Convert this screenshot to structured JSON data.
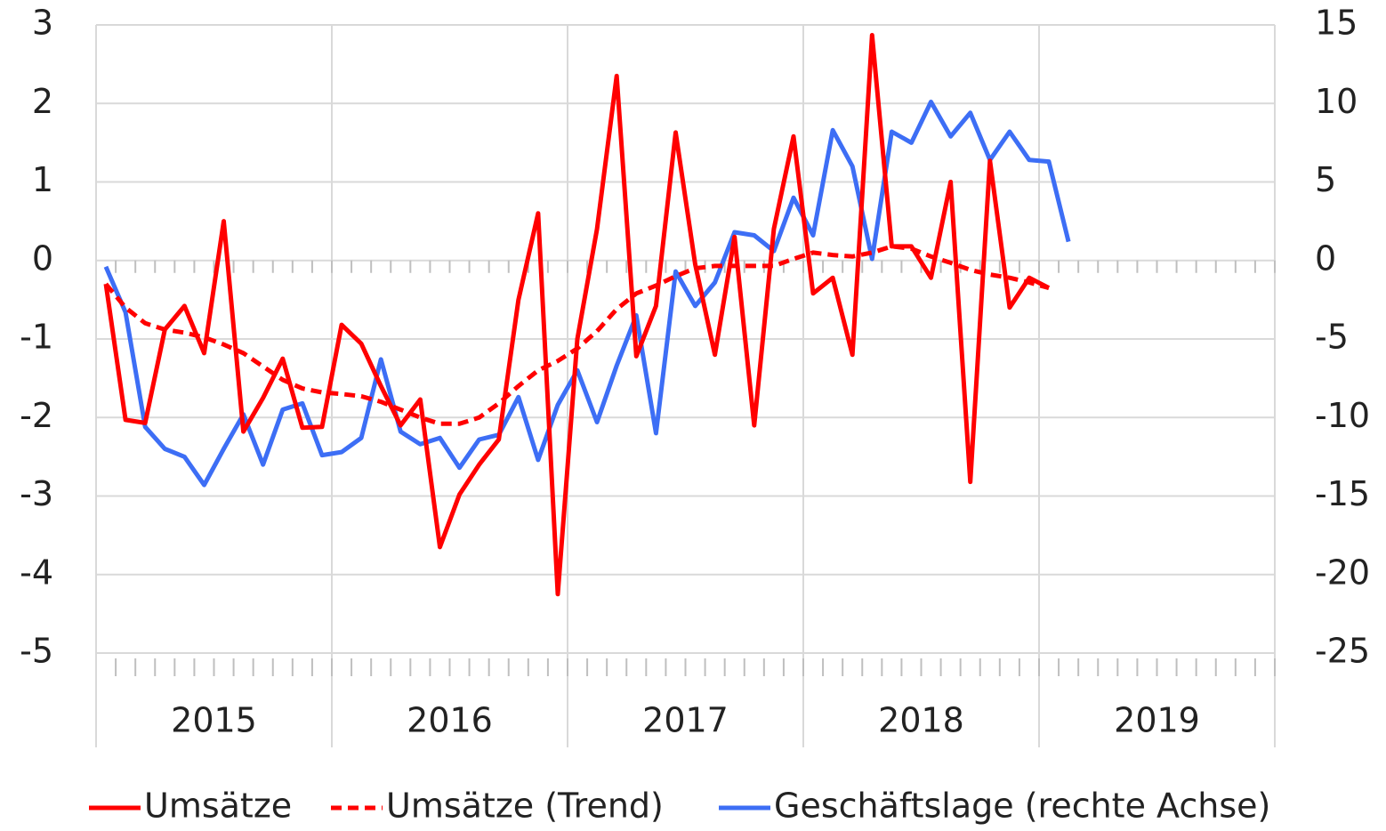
{
  "chart_data": {
    "type": "line",
    "categories": [
      null,
      null,
      null,
      null,
      null,
      null,
      null,
      null,
      null,
      null,
      null,
      null,
      null,
      null,
      null,
      null,
      null,
      null,
      null,
      null,
      null,
      null,
      null,
      null,
      null,
      null,
      null,
      null,
      null,
      null,
      null,
      null,
      null,
      null,
      null,
      null,
      null,
      null,
      null,
      null,
      null,
      null,
      null,
      null,
      null,
      null,
      null,
      null,
      null,
      null,
      null,
      null,
      null,
      null,
      null,
      null,
      null,
      null,
      null,
      null
    ],
    "year_labels": [
      "2015",
      "2016",
      "2017",
      "2018",
      "2019"
    ],
    "ylim": [
      -5,
      3
    ],
    "yticks": [
      -5,
      -4,
      -3,
      -2,
      -1,
      0,
      1,
      2,
      3
    ],
    "y2lim": [
      -25,
      15
    ],
    "y2ticks": [
      -25,
      -20,
      -15,
      -10,
      -5,
      0,
      5,
      10,
      15
    ],
    "grid": true,
    "legend": "bottom",
    "series": [
      {
        "name": "Umsätze",
        "color": "#ff0000",
        "style": "solid",
        "values": [
          -0.3,
          -2.03,
          -2.07,
          -0.88,
          -0.58,
          -1.18,
          0.5,
          -2.18,
          -1.75,
          -1.25,
          -2.13,
          -2.12,
          -0.82,
          -1.06,
          -1.6,
          -2.1,
          -1.77,
          -3.65,
          -2.98,
          -2.6,
          -2.28,
          -0.5,
          0.6,
          -4.25,
          -1.0,
          0.4,
          2.35,
          -1.22,
          -0.58,
          1.63,
          -0.05,
          -1.2,
          0.3,
          -2.1,
          0.4,
          1.58,
          -0.42,
          -0.22,
          -1.2,
          2.87,
          0.18,
          0.18,
          -0.22,
          1.0,
          -2.82,
          1.27,
          -0.6,
          -0.22,
          -0.35,
          null,
          null,
          null,
          null,
          null,
          null,
          null,
          null,
          null,
          null,
          null
        ]
      },
      {
        "name": "Umsätze (Trend)",
        "color": "#ff0000",
        "style": "dashed",
        "values": [
          -0.3,
          -0.6,
          -0.8,
          -0.88,
          -0.92,
          -0.98,
          -1.07,
          -1.18,
          -1.35,
          -1.52,
          -1.63,
          -1.68,
          -1.7,
          -1.73,
          -1.8,
          -1.9,
          -2.0,
          -2.08,
          -2.08,
          -2.0,
          -1.82,
          -1.6,
          -1.4,
          -1.28,
          -1.12,
          -0.9,
          -0.62,
          -0.42,
          -0.32,
          -0.2,
          -0.1,
          -0.07,
          -0.07,
          -0.07,
          -0.07,
          0.02,
          0.1,
          0.07,
          0.05,
          0.1,
          0.18,
          0.15,
          0.05,
          -0.03,
          -0.12,
          -0.18,
          -0.22,
          -0.28,
          -0.35,
          null,
          null,
          null,
          null,
          null,
          null,
          null,
          null,
          null,
          null,
          null
        ]
      },
      {
        "name": "Geschäftslage (rechte Achse)",
        "color": "#3d6ef5",
        "style": "solid",
        "axis": "y2",
        "values": [
          -0.4,
          -3.3,
          -10.6,
          -12.0,
          -12.5,
          -14.3,
          -12.0,
          -9.8,
          -13.0,
          -9.5,
          -9.1,
          -12.4,
          -12.2,
          -11.3,
          -6.3,
          -10.9,
          -11.7,
          -11.3,
          -13.2,
          -11.4,
          -11.1,
          -8.7,
          -12.7,
          -9.2,
          -7.0,
          -10.3,
          -6.7,
          -3.5,
          -11.0,
          -0.7,
          -2.9,
          -1.4,
          1.8,
          1.6,
          0.6,
          4.0,
          1.6,
          8.3,
          6.0,
          0.1,
          8.2,
          7.5,
          10.1,
          7.9,
          9.4,
          6.4,
          8.2,
          6.4,
          6.3,
          1.2,
          null,
          null,
          null,
          null,
          null,
          null,
          null,
          null,
          null,
          null
        ]
      }
    ]
  }
}
